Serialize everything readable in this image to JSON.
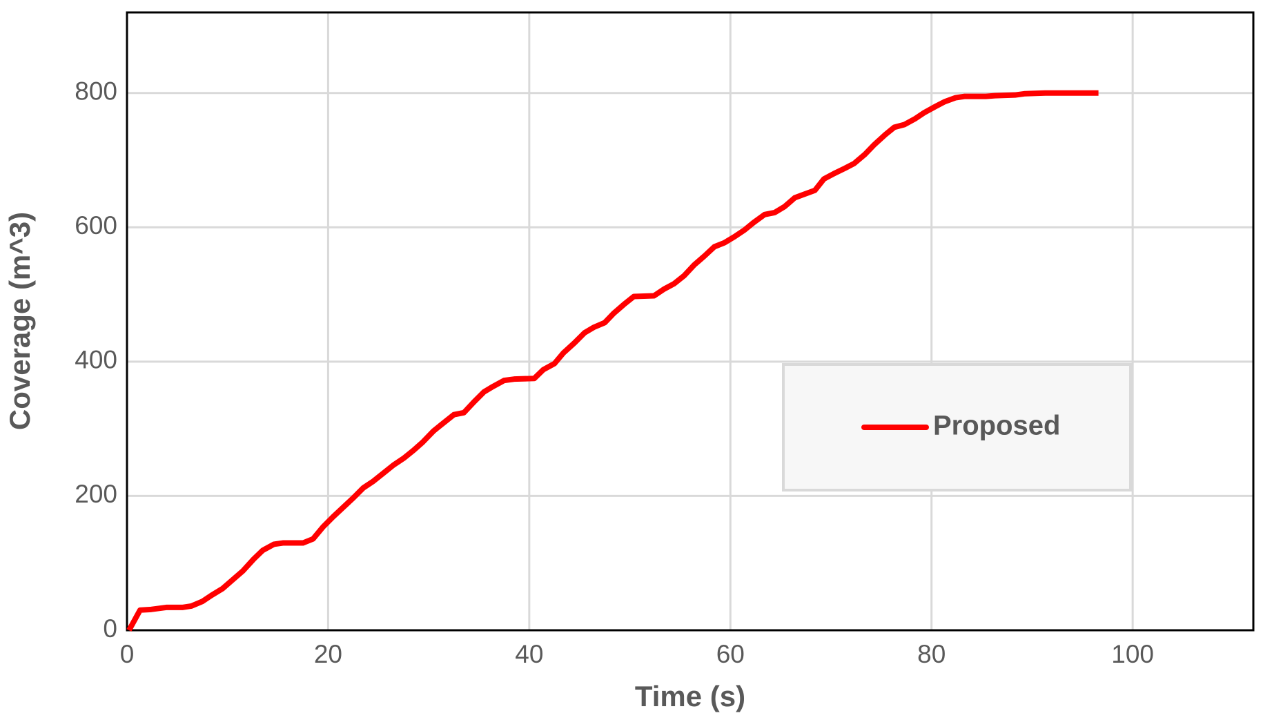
{
  "chart_data": {
    "type": "line",
    "x_label": "Time (s)",
    "y_label": "Coverage (m^3)",
    "xlim": [
      0,
      112
    ],
    "ylim": [
      0,
      920
    ],
    "xticks": [
      0,
      20,
      40,
      60,
      80,
      100
    ],
    "yticks": [
      0,
      200,
      400,
      600,
      800
    ],
    "grid": true,
    "legend": "right",
    "series": [
      {
        "name": "Proposed",
        "color": "#ff0000",
        "x": [
          0.2,
          1.3,
          2.4,
          3.9,
          5.5,
          6.4,
          7.5,
          8.4,
          9.5,
          10.5,
          11.5,
          12.6,
          13.5,
          14.6,
          15.5,
          17.5,
          18.5,
          19.5,
          20.5,
          21.5,
          22.5,
          23.5,
          24.5,
          25.5,
          26.5,
          27.5,
          28.5,
          29.4,
          30.5,
          31.5,
          32.5,
          33.5,
          34.5,
          35.5,
          36.4,
          37.5,
          38.5,
          40.5,
          41.4,
          42.5,
          43.4,
          44.5,
          45.5,
          46.4,
          47.5,
          48.4,
          49.4,
          50.4,
          52.4,
          53.4,
          54.4,
          55.4,
          56.4,
          57.4,
          58.4,
          59.4,
          60.4,
          61.4,
          62.3,
          63.4,
          64.4,
          65.4,
          66.4,
          67.3,
          68.4,
          69.3,
          70.3,
          71.4,
          72.3,
          73.4,
          74.3,
          75.4,
          76.3,
          77.3,
          78.4,
          79.3,
          80.4,
          81.3,
          82.4,
          83.3,
          85.4,
          86.3,
          88.3,
          89.3,
          91.3,
          93.2,
          96.6
        ],
        "values": [
          0,
          30,
          31,
          34,
          34,
          36,
          43,
          52,
          62,
          75,
          88,
          106,
          119,
          128,
          130,
          130,
          136,
          154,
          169,
          183,
          197,
          212,
          222,
          234,
          246,
          256,
          268,
          280,
          297,
          309,
          321,
          324,
          340,
          355,
          363,
          372,
          374,
          375,
          388,
          397,
          413,
          428,
          443,
          451,
          458,
          472,
          485,
          497,
          498,
          508,
          516,
          528,
          544,
          557,
          571,
          577,
          586,
          596,
          607,
          619,
          622,
          631,
          644,
          649,
          655,
          672,
          680,
          688,
          695,
          709,
          723,
          738,
          749,
          753,
          762,
          771,
          780,
          787,
          793,
          795,
          795,
          796,
          797,
          799,
          800,
          800,
          800
        ]
      }
    ]
  }
}
